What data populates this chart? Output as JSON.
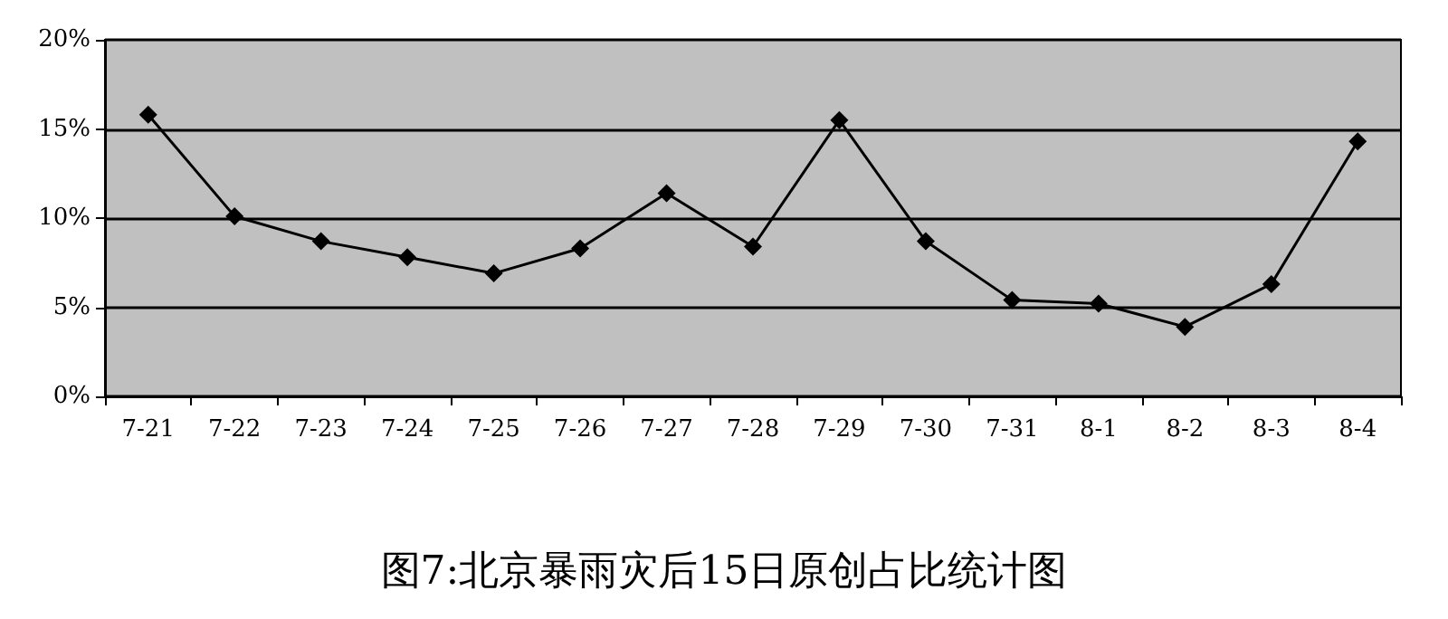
{
  "chart_data": {
    "type": "line",
    "title": "图7:北京暴雨灾后15日原创占比统计图",
    "categories": [
      "7-21",
      "7-22",
      "7-23",
      "7-24",
      "7-25",
      "7-26",
      "7-27",
      "7-28",
      "7-29",
      "7-30",
      "7-31",
      "8-1",
      "8-2",
      "8-3",
      "8-4"
    ],
    "series": [
      {
        "color": "#000000",
        "values": [
          15.8,
          10.1,
          8.7,
          7.8,
          6.9,
          8.3,
          11.4,
          8.4,
          15.5,
          8.7,
          5.4,
          5.2,
          3.9,
          6.3,
          14.3
        ]
      }
    ],
    "ylim": [
      0,
      20
    ],
    "yticks": [
      {
        "value": 0,
        "label": "0%"
      },
      {
        "value": 5,
        "label": "5%"
      },
      {
        "value": 10,
        "label": "10%"
      },
      {
        "value": 15,
        "label": "15%"
      },
      {
        "value": 20,
        "label": "20%"
      }
    ],
    "grid": "y",
    "marker": "diamond",
    "line_style": "solid"
  }
}
